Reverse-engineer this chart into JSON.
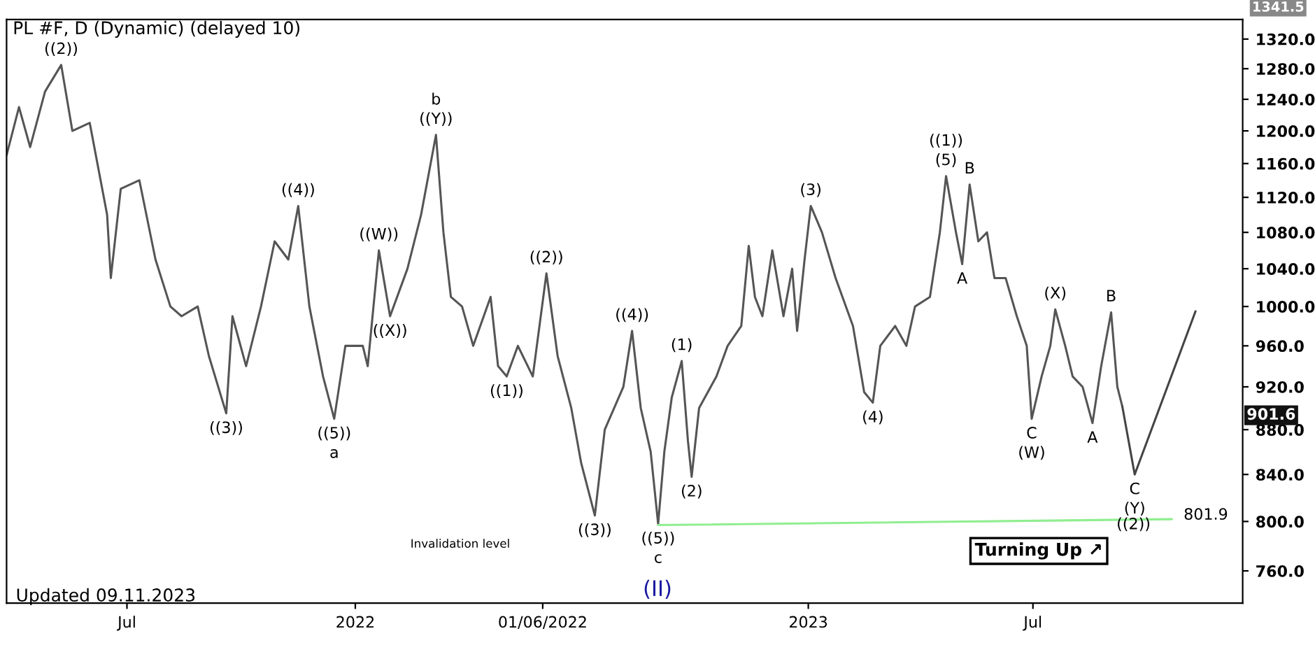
{
  "chart_data": {
    "type": "line",
    "title": "PL #F, D (Dynamic) (delayed 10)",
    "log": "y",
    "grid": false,
    "legend": false,
    "marker": "none",
    "line_style": "solid",
    "xlim": [
      "2021-03-26",
      "2023-12-17"
    ],
    "xticks": [
      {
        "value": "2021-07-01",
        "label": "Jul"
      },
      {
        "value": "2022-01-01",
        "label": "2022"
      },
      {
        "value": "2022-06-01",
        "label": "01/06/2022"
      },
      {
        "value": "2023-01-01",
        "label": "2023"
      },
      {
        "value": "2023-07-01",
        "label": "Jul"
      }
    ],
    "ylim": [
      735,
      1347
    ],
    "yticks": [
      {
        "value": 760,
        "label": "760.0"
      },
      {
        "value": 800,
        "label": "800.0"
      },
      {
        "value": 840,
        "label": "840.0"
      },
      {
        "value": 880,
        "label": "880.0"
      },
      {
        "value": 920,
        "label": "920.0"
      },
      {
        "value": 960,
        "label": "960.0"
      },
      {
        "value": 1000,
        "label": "1000.0"
      },
      {
        "value": 1040,
        "label": "1040.0"
      },
      {
        "value": 1080,
        "label": "1080.0"
      },
      {
        "value": 1120,
        "label": "1120.0"
      },
      {
        "value": 1160,
        "label": "1160.0"
      },
      {
        "value": 1200,
        "label": "1200.0"
      },
      {
        "value": 1240,
        "label": "1240.0"
      },
      {
        "value": 1280,
        "label": "1280.0"
      },
      {
        "value": 1320,
        "label": "1320.0"
      }
    ],
    "series": [
      {
        "color": "#555555",
        "x": [
          "2021-03-26",
          "2021-04-05",
          "2021-04-14",
          "2021-04-26",
          "2021-05-09",
          "2021-05-18",
          "2021-06-01",
          "2021-06-15",
          "2021-06-18",
          "2021-06-26",
          "2021-07-11",
          "2021-07-24",
          "2021-08-05",
          "2021-08-14",
          "2021-08-27",
          "2021-09-05",
          "2021-09-19",
          "2021-09-24",
          "2021-10-05",
          "2021-10-17",
          "2021-10-28",
          "2021-11-08",
          "2021-11-16",
          "2021-11-25",
          "2021-12-06",
          "2021-12-15",
          "2021-12-24",
          "2022-01-07",
          "2022-01-11",
          "2022-01-20",
          "2022-01-29",
          "2022-02-12",
          "2022-02-23",
          "2022-03-07",
          "2022-03-13",
          "2022-03-19",
          "2022-03-28",
          "2022-04-06",
          "2022-04-20",
          "2022-04-26",
          "2022-05-03",
          "2022-05-12",
          "2022-05-24",
          "2022-06-04",
          "2022-06-13",
          "2022-06-24",
          "2022-07-02",
          "2022-07-13",
          "2022-07-21",
          "2022-08-05",
          "2022-08-12",
          "2022-08-19",
          "2022-08-27",
          "2022-09-02",
          "2022-09-07",
          "2022-09-13",
          "2022-09-21",
          "2022-09-26",
          "2022-09-29",
          "2022-10-05",
          "2022-10-19",
          "2022-10-28",
          "2022-11-08",
          "2022-11-14",
          "2022-11-19",
          "2022-11-25",
          "2022-12-03",
          "2022-12-12",
          "2022-12-19",
          "2022-12-23",
          "2022-12-29",
          "2023-01-03",
          "2023-01-12",
          "2023-01-23",
          "2023-02-06",
          "2023-02-15",
          "2023-02-22",
          "2023-02-28",
          "2023-03-12",
          "2023-03-21",
          "2023-03-28",
          "2023-04-09",
          "2023-04-17",
          "2023-04-22",
          "2023-04-30",
          "2023-05-05",
          "2023-05-11",
          "2023-05-18",
          "2023-05-25",
          "2023-05-31",
          "2023-06-09",
          "2023-06-18",
          "2023-06-26",
          "2023-06-30",
          "2023-07-08",
          "2023-07-15",
          "2023-07-19",
          "2023-07-27",
          "2023-08-02",
          "2023-08-10",
          "2023-08-18",
          "2023-08-25",
          "2023-09-02",
          "2023-09-07",
          "2023-09-11"
        ],
        "values": [
          1170,
          1230,
          1180,
          1250,
          1285,
          1200,
          1210,
          1100,
          1030,
          1130,
          1140,
          1050,
          1000,
          990,
          1000,
          950,
          895,
          990,
          940,
          1000,
          1070,
          1050,
          1110,
          1000,
          930,
          890,
          960,
          960,
          940,
          1060,
          990,
          1040,
          1100,
          1195,
          1080,
          1010,
          1000,
          960,
          1010,
          940,
          930,
          960,
          930,
          1035,
          950,
          900,
          850,
          805,
          880,
          920,
          975,
          900,
          860,
          798,
          860,
          910,
          945,
          870,
          838,
          900,
          930,
          960,
          980,
          1065,
          1010,
          990,
          1060,
          990,
          1040,
          975,
          1050,
          1110,
          1080,
          1030,
          980,
          915,
          905,
          960,
          980,
          960,
          1000,
          1010,
          1080,
          1145,
          1080,
          1045,
          1135,
          1070,
          1080,
          1030,
          1030,
          990,
          960,
          890,
          930,
          960,
          997,
          960,
          930,
          920,
          886,
          940,
          994,
          920,
          901.6
        ]
      },
      {
        "color": "#444444",
        "x": [
          "2023-09-11",
          "2023-09-21",
          "2023-11-09"
        ],
        "values": [
          901.6,
          840,
          995
        ]
      },
      {
        "color": "#90ee90",
        "x": [
          "2022-09-02",
          "2023-10-21"
        ],
        "values": [
          797,
          801.9
        ]
      }
    ],
    "annotations": [
      {
        "text": "((2))",
        "x": "2021-05-09",
        "y": 1285
      },
      {
        "text": "((3))",
        "x": "2021-09-19",
        "y": 895
      },
      {
        "text": "((4))",
        "x": "2021-11-16",
        "y": 1110
      },
      {
        "text": "((5))",
        "x": "2021-12-15",
        "y": 890
      },
      {
        "text": "a",
        "x": "2021-12-15",
        "y": 890
      },
      {
        "text": "((W))",
        "x": "2022-01-20",
        "y": 1060
      },
      {
        "text": "((X))",
        "x": "2022-01-29",
        "y": 990
      },
      {
        "text": "b",
        "x": "2022-03-07",
        "y": 1195
      },
      {
        "text": "((Y))",
        "x": "2022-03-07",
        "y": 1195
      },
      {
        "text": "((1))",
        "x": "2022-05-03",
        "y": 930
      },
      {
        "text": "((2))",
        "x": "2022-06-04",
        "y": 1035
      },
      {
        "text": "((3))",
        "x": "2022-07-13",
        "y": 805
      },
      {
        "text": "((4))",
        "x": "2022-08-12",
        "y": 975
      },
      {
        "text": "((5))",
        "x": "2022-09-02",
        "y": 798
      },
      {
        "text": "c",
        "x": "2022-09-02",
        "y": 798
      },
      {
        "text": "(1)",
        "x": "2022-09-21",
        "y": 945
      },
      {
        "text": "(2)",
        "x": "2022-09-29",
        "y": 838
      },
      {
        "text": "(3)",
        "x": "2023-01-03",
        "y": 1110
      },
      {
        "text": "(4)",
        "x": "2023-02-22",
        "y": 905
      },
      {
        "text": "((1))",
        "x": "2023-04-22",
        "y": 1145
      },
      {
        "text": "(5)",
        "x": "2023-04-22",
        "y": 1145
      },
      {
        "text": "A",
        "x": "2023-05-05",
        "y": 1045
      },
      {
        "text": "B",
        "x": "2023-05-11",
        "y": 1135
      },
      {
        "text": "C",
        "x": "2023-06-30",
        "y": 890
      },
      {
        "text": "(W)",
        "x": "2023-06-30",
        "y": 890
      },
      {
        "text": "(X)",
        "x": "2023-07-19",
        "y": 997
      },
      {
        "text": "A",
        "x": "2023-08-18",
        "y": 886
      },
      {
        "text": "B",
        "x": "2023-09-02",
        "y": 994
      },
      {
        "text": "C",
        "x": "2023-09-21",
        "y": 840
      },
      {
        "text": "(Y)",
        "x": "2023-09-21",
        "y": 840
      },
      {
        "text": "801.9",
        "x": "2023-10-21",
        "y": 801.9
      },
      "Invalidation level",
      "Turning Up ↗",
      "1341.5",
      "Updated 09.11.2023",
      "(II)",
      "((2))",
      "901.6"
    ]
  }
}
